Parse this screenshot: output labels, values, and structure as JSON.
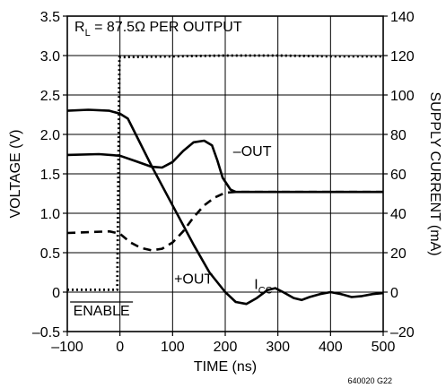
{
  "chart_data": {
    "type": "line",
    "xlabel": "TIME (ns)",
    "ylabel": "VOLTAGE (V)",
    "y2label": "SUPPLY CURRENT (mA)",
    "xlim": [
      -100,
      500
    ],
    "ylim": [
      -0.5,
      3.5
    ],
    "y2lim": [
      -20,
      140
    ],
    "x_ticks": [
      "–100",
      "0",
      "100",
      "200",
      "300",
      "400",
      "500"
    ],
    "x_tick_values": [
      -100,
      0,
      100,
      200,
      300,
      400,
      500
    ],
    "y_ticks": [
      "–0.5",
      "0",
      "0.5",
      "1.0",
      "1.5",
      "2.0",
      "2.5",
      "3.0",
      "3.5"
    ],
    "y_tick_values": [
      -0.5,
      0,
      0.5,
      1.0,
      1.5,
      2.0,
      2.5,
      3.0,
      3.5
    ],
    "y2_ticks": [
      "–20",
      "0",
      "20",
      "40",
      "60",
      "80",
      "100",
      "120",
      "140"
    ],
    "y2_tick_values": [
      -20,
      0,
      20,
      40,
      60,
      80,
      100,
      120,
      140
    ],
    "grid": true,
    "condition_label": {
      "r": "R",
      "sub": "L",
      "rest": " = 87.5Ω PER OUTPUT"
    },
    "figure_id": "640020 G22",
    "series": [
      {
        "name": "ENABLE",
        "style": "dotted",
        "axis": "left",
        "points": [
          [
            -100,
            0.03
          ],
          [
            -5,
            0.03
          ],
          [
            -3,
            1.5
          ],
          [
            -1,
            2.98
          ],
          [
            100,
            2.99
          ],
          [
            200,
            3.0
          ],
          [
            300,
            3.0
          ],
          [
            400,
            2.99
          ],
          [
            500,
            2.99
          ]
        ]
      },
      {
        "name": "–OUT",
        "style": "solid",
        "axis": "left",
        "points": [
          [
            -100,
            1.74
          ],
          [
            -40,
            1.75
          ],
          [
            0,
            1.73
          ],
          [
            30,
            1.66
          ],
          [
            60,
            1.59
          ],
          [
            80,
            1.58
          ],
          [
            100,
            1.65
          ],
          [
            120,
            1.79
          ],
          [
            140,
            1.9
          ],
          [
            160,
            1.92
          ],
          [
            175,
            1.86
          ],
          [
            185,
            1.67
          ],
          [
            195,
            1.45
          ],
          [
            210,
            1.3
          ],
          [
            220,
            1.27
          ],
          [
            300,
            1.27
          ],
          [
            400,
            1.27
          ],
          [
            500,
            1.27
          ]
        ]
      },
      {
        "name": "+OUT",
        "style": "dashed",
        "axis": "left",
        "points": [
          [
            -100,
            0.75
          ],
          [
            -20,
            0.77
          ],
          [
            0,
            0.74
          ],
          [
            20,
            0.63
          ],
          [
            40,
            0.56
          ],
          [
            60,
            0.53
          ],
          [
            80,
            0.55
          ],
          [
            100,
            0.63
          ],
          [
            120,
            0.77
          ],
          [
            140,
            0.95
          ],
          [
            160,
            1.1
          ],
          [
            180,
            1.2
          ],
          [
            200,
            1.26
          ],
          [
            220,
            1.27
          ],
          [
            300,
            1.27
          ],
          [
            400,
            1.27
          ],
          [
            500,
            1.27
          ]
        ]
      },
      {
        "name": "ICC",
        "style": "solid",
        "axis": "right",
        "points": [
          [
            -100,
            92
          ],
          [
            -60,
            92.5
          ],
          [
            -20,
            92
          ],
          [
            0,
            90.5
          ],
          [
            15,
            88
          ],
          [
            30,
            80
          ],
          [
            60,
            64
          ],
          [
            100,
            44
          ],
          [
            140,
            24
          ],
          [
            170,
            10
          ],
          [
            200,
            0
          ],
          [
            220,
            -5
          ],
          [
            240,
            -6
          ],
          [
            260,
            -3
          ],
          [
            280,
            1
          ],
          [
            295,
            2
          ],
          [
            310,
            0
          ],
          [
            330,
            -3
          ],
          [
            345,
            -4
          ],
          [
            360,
            -2.5
          ],
          [
            380,
            -1
          ],
          [
            400,
            0
          ],
          [
            420,
            -1
          ],
          [
            440,
            -2.5
          ],
          [
            460,
            -2
          ],
          [
            480,
            -1
          ],
          [
            500,
            -0.5
          ]
        ]
      }
    ],
    "annotations": [
      {
        "text": "–OUT",
        "x": 215,
        "y": 1.73
      },
      {
        "text": "+OUT",
        "x": 103,
        "y": 0.11
      },
      {
        "text": "I",
        "sub": "CC",
        "x": 255,
        "y": 0.04
      }
    ],
    "enable_label": "ENABLE"
  }
}
